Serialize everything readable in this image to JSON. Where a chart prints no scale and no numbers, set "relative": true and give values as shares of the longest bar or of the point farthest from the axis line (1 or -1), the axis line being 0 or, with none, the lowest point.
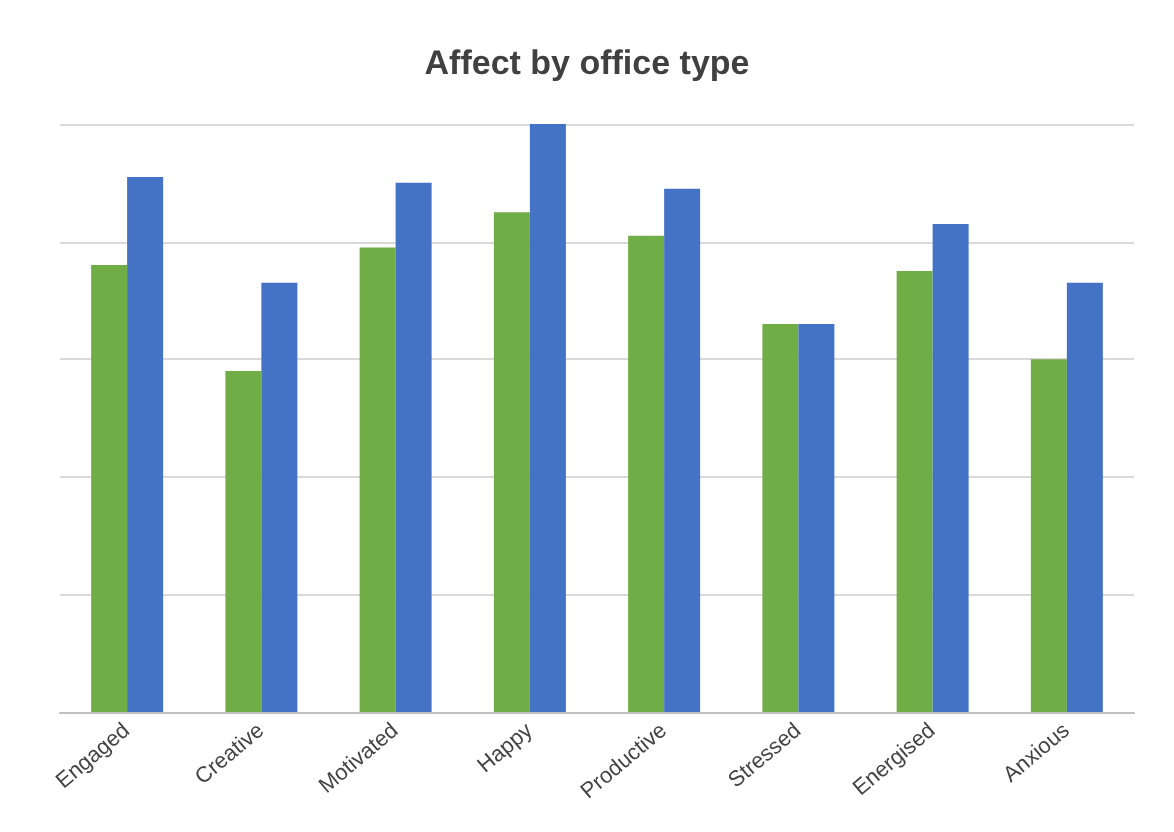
{
  "chart_data": {
    "type": "bar",
    "title": "Affect by office type",
    "relative": true,
    "grid": "y",
    "categories": [
      "Engaged",
      "Creative",
      "Motivated",
      "Happy",
      "Productive",
      "Stressed",
      "Energised",
      "Anxious"
    ],
    "series": [
      {
        "color": "#70ad47",
        "values": [
          0.76,
          0.58,
          0.79,
          0.85,
          0.81,
          0.66,
          0.75,
          0.6
        ]
      },
      {
        "color": "#4472c4",
        "values": [
          0.91,
          0.73,
          0.9,
          1,
          0.89,
          0.66,
          0.83,
          0.73
        ]
      }
    ]
  }
}
